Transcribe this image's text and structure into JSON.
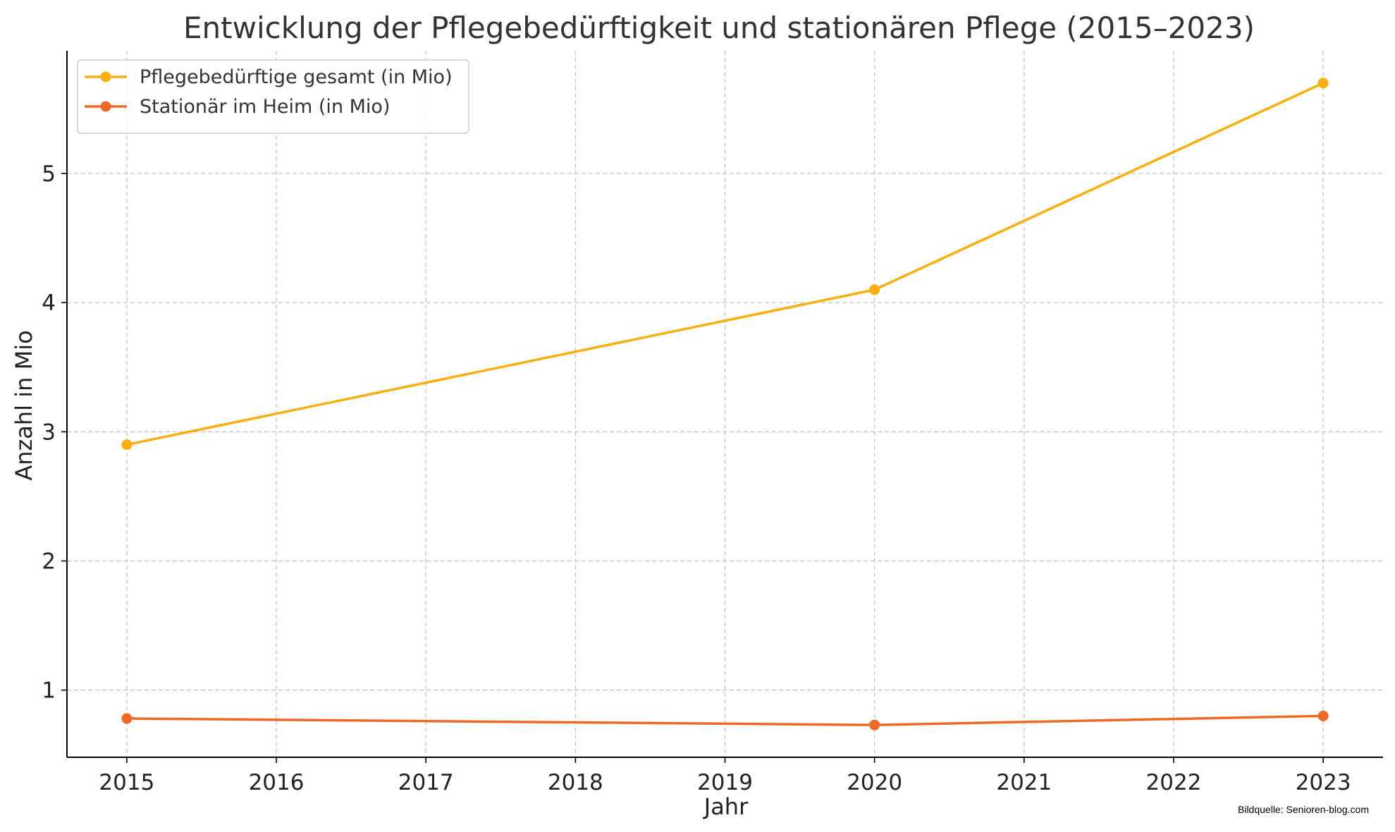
{
  "chart_data": {
    "type": "line",
    "title": "Entwicklung der Pflegebedürftigkeit und stationären Pflege (2015–2023)",
    "xlabel": "Jahr",
    "ylabel": "Anzahl in Mio",
    "x_ticks": [
      "2015",
      "2016",
      "2017",
      "2018",
      "2019",
      "2020",
      "2021",
      "2022",
      "2023"
    ],
    "y_ticks": [
      "1",
      "2",
      "3",
      "4",
      "5"
    ],
    "xlim": [
      2014.6,
      2023.4
    ],
    "ylim": [
      0.48,
      5.95
    ],
    "grid": true,
    "legend_position": "top-left",
    "series": [
      {
        "name": "Pflegebedürftige gesamt (in Mio)",
        "color": "#F9AE11",
        "x": [
          2015,
          2020,
          2023
        ],
        "y": [
          2.9,
          4.1,
          5.7
        ]
      },
      {
        "name": "Stationär im Heim (in Mio)",
        "color": "#EE6A24",
        "x": [
          2015,
          2020,
          2023
        ],
        "y": [
          0.78,
          0.73,
          0.8
        ]
      }
    ],
    "source_note": "Bildquelle: Senioren-blog.com"
  }
}
